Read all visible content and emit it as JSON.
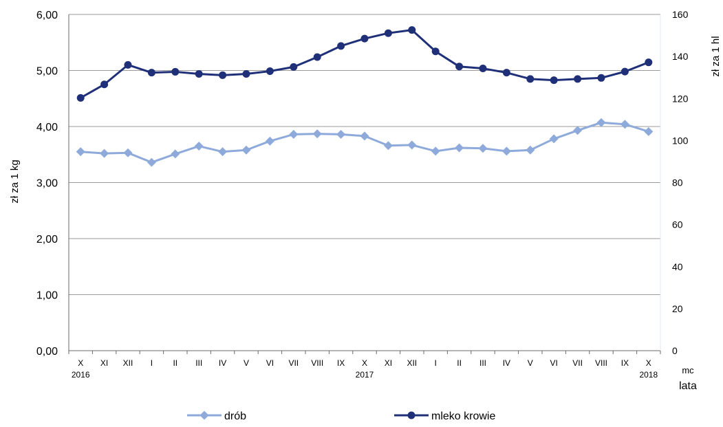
{
  "chart_data": {
    "type": "line",
    "categories": [
      "X",
      "XI",
      "XII",
      "I",
      "II",
      "III",
      "IV",
      "V",
      "VI",
      "VII",
      "VIII",
      "IX",
      "X",
      "XI",
      "XII",
      "I",
      "II",
      "III",
      "IV",
      "V",
      "VI",
      "VII",
      "VIII",
      "IX",
      "X"
    ],
    "year_labels": [
      {
        "index": 0,
        "label": "2016"
      },
      {
        "index": 12,
        "label": "2017"
      },
      {
        "index": 24,
        "label": "2018"
      }
    ],
    "series": [
      {
        "name": "drób",
        "axis": "left",
        "color": "#8eaadb",
        "marker": "diamond",
        "values": [
          3.55,
          3.52,
          3.53,
          3.36,
          3.51,
          3.65,
          3.55,
          3.58,
          3.74,
          3.86,
          3.87,
          3.86,
          3.83,
          3.66,
          3.67,
          3.56,
          3.62,
          3.61,
          3.56,
          3.58,
          3.78,
          3.93,
          4.07,
          4.04,
          3.91
        ]
      },
      {
        "name": "mleko krowie",
        "axis": "right",
        "color": "#1f3079",
        "marker": "circle",
        "values": [
          120.3,
          126.7,
          136.0,
          132.3,
          132.7,
          131.7,
          131.1,
          131.7,
          133.0,
          135.0,
          139.7,
          145.0,
          148.5,
          151.1,
          152.6,
          142.4,
          135.2,
          134.3,
          132.3,
          129.3,
          128.7,
          129.3,
          129.8,
          132.8,
          137.2
        ]
      }
    ],
    "ylim_left": [
      0,
      6
    ],
    "ylim_right": [
      0,
      160
    ],
    "y_left_ticks": [
      "0,00",
      "1,00",
      "2,00",
      "3,00",
      "4,00",
      "5,00",
      "6,00"
    ],
    "y_right_ticks": [
      "0",
      "20",
      "40",
      "60",
      "80",
      "100",
      "120",
      "140",
      "160"
    ],
    "ylabel_left": "zł za 1 kg",
    "ylabel_right": "zł za 1 hl",
    "xlabel_line1": "mc",
    "xlabel_line2": "lata",
    "grid": true,
    "legend_position": "bottom"
  }
}
